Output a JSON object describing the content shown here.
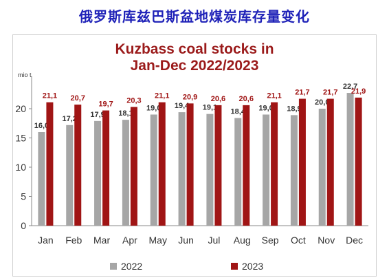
{
  "page_title": "俄罗斯库兹巴斯盆地煤炭库存量变化",
  "chart_data": {
    "type": "bar",
    "title_line1": "Kuzbass coal stocks in",
    "title_line2": "Jan-Dec 2022/2023",
    "ylabel": "mio t",
    "ylim": [
      0,
      25
    ],
    "yticks": [
      "0",
      "5",
      "10",
      "15",
      "20"
    ],
    "categories": [
      "Jan",
      "Feb",
      "Mar",
      "Apr",
      "May",
      "Jun",
      "Jul",
      "Aug",
      "Sep",
      "Oct",
      "Nov",
      "Dec"
    ],
    "series": [
      {
        "name": "2022",
        "color": "#a6a6a6",
        "label_color": "#333333",
        "values": [
          16.0,
          17.2,
          17.9,
          18.1,
          19.0,
          19.4,
          19.1,
          18.4,
          19.0,
          18.9,
          20.0,
          22.7
        ],
        "labels": [
          "16,0",
          "17,2",
          "17,9",
          "18,1",
          "19,0",
          "19,4",
          "19,1",
          "18,4",
          "19,0",
          "18,9",
          "20,0",
          "22,7"
        ]
      },
      {
        "name": "2023",
        "color": "#a01515",
        "label_color": "#a01515",
        "values": [
          21.1,
          20.7,
          19.7,
          20.3,
          21.1,
          20.9,
          20.6,
          20.6,
          21.1,
          21.7,
          21.7,
          21.9
        ],
        "labels": [
          "21,1",
          "20,7",
          "19,7",
          "20,3",
          "21,1",
          "20,9",
          "20,6",
          "20,6",
          "21,1",
          "21,7",
          "21,7",
          "21,9"
        ]
      }
    ],
    "legend_position": "bottom",
    "grid": false
  }
}
